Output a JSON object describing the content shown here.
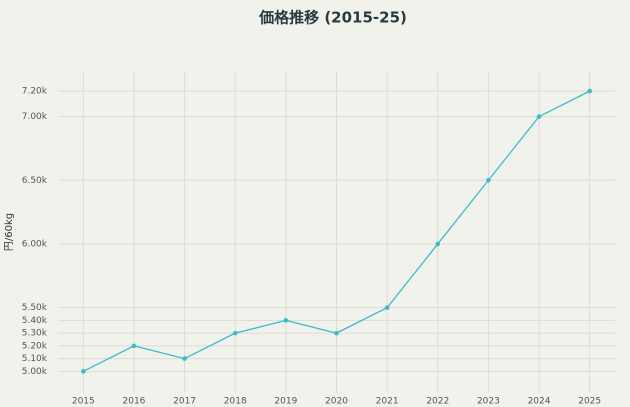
{
  "chart_data": {
    "type": "line",
    "title": "価格推移 (2015-25)",
    "y_label": "円/60kg",
    "x": [
      2015,
      2016,
      2017,
      2018,
      2019,
      2020,
      2021,
      2022,
      2023,
      2024,
      2025
    ],
    "series": [
      {
        "color": "#3bbccc",
        "values": [
          5000,
          5200,
          5100,
          5300,
          5400,
          5300,
          5500,
          6000,
          6500,
          7000,
          7200
        ]
      }
    ],
    "xlim": [
      2014.5,
      2025.5
    ],
    "xticks": [
      2015,
      2016,
      2017,
      2018,
      2019,
      2020,
      2021,
      2022,
      2023,
      2024,
      2025
    ],
    "ylim": [
      4830,
      7350
    ],
    "yticks": [
      {
        "value": 5000,
        "label": "5.00k"
      },
      {
        "value": 5100,
        "label": "5.10k"
      },
      {
        "value": 5200,
        "label": "5.20k"
      },
      {
        "value": 5300,
        "label": "5.30k"
      },
      {
        "value": 5400,
        "label": "5.40k"
      },
      {
        "value": 5500,
        "label": "5.50k"
      },
      {
        "value": 6000,
        "label": "6.00k"
      },
      {
        "value": 6500,
        "label": "6.50k"
      },
      {
        "value": 7000,
        "label": "7.00k"
      },
      {
        "value": 7200,
        "label": "7.20k"
      }
    ],
    "grid": true
  }
}
